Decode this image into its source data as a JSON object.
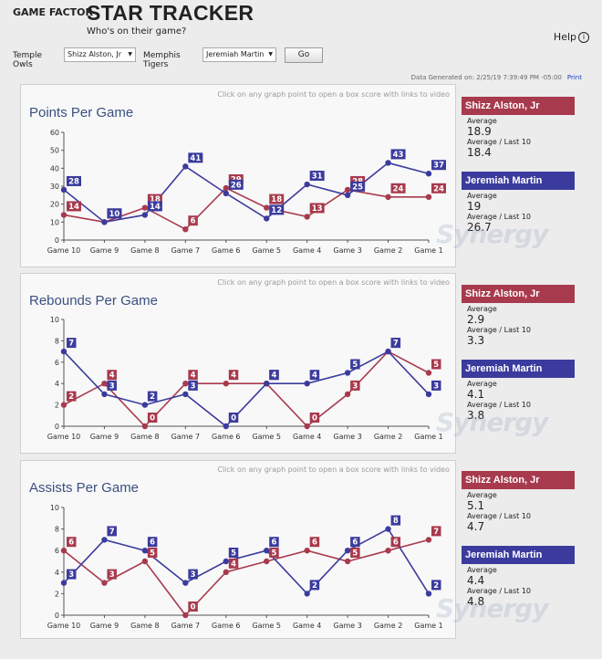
{
  "header": {
    "brand": "GAME FACTOR",
    "title": "STAR TRACKER",
    "subtitle": "Who's on their game?",
    "help": "Help"
  },
  "selectors": {
    "team1_label": "Temple Owls",
    "team1_player": "Shizz Alston, Jr",
    "team2_label": "Memphis Tigers",
    "team2_player": "Jeremiah Martin",
    "go": "Go"
  },
  "generated": {
    "text": "Data Generated on: 2/25/19 7:39:49 PM -05:00",
    "print": "Print"
  },
  "click_note": "Click on any graph point to open a box score with links to video",
  "stat_labels": {
    "average": "Average",
    "last10": "Average / Last 10"
  },
  "colors": {
    "red": "#a83a4d",
    "blue": "#3b3b9e"
  },
  "chart_data": [
    {
      "type": "line",
      "title": "Points Per Game",
      "categories": [
        "Game 10",
        "Game 9",
        "Game 8",
        "Game 7",
        "Game 6",
        "Game 5",
        "Game 4",
        "Game 3",
        "Game 2",
        "Game 1"
      ],
      "yticks": [
        0,
        10,
        20,
        30,
        40,
        50,
        60
      ],
      "ylim": [
        0,
        60
      ],
      "series": [
        {
          "name": "Shizz Alston, Jr",
          "color": "#a83a4d",
          "values": [
            14,
            10,
            18,
            6,
            29,
            18,
            13,
            28,
            24,
            24
          ]
        },
        {
          "name": "Jeremiah Martin",
          "color": "#3b3b9e",
          "values": [
            28,
            10,
            14,
            41,
            26,
            12,
            31,
            25,
            43,
            37
          ]
        }
      ],
      "players": [
        {
          "name": "Shizz Alston, Jr",
          "color": "red",
          "average": "18.9",
          "last10": "18.4"
        },
        {
          "name": "Jeremiah Martin",
          "color": "blue",
          "average": "19",
          "last10": "26.7"
        }
      ]
    },
    {
      "type": "line",
      "title": "Rebounds Per Game",
      "categories": [
        "Game 10",
        "Game 9",
        "Game 8",
        "Game 7",
        "Game 6",
        "Game 5",
        "Game 4",
        "Game 3",
        "Game 2",
        "Game 1"
      ],
      "yticks": [
        0,
        2,
        4,
        6,
        8,
        10
      ],
      "ylim": [
        0,
        10
      ],
      "series": [
        {
          "name": "Shizz Alston, Jr",
          "color": "#a83a4d",
          "values": [
            2,
            4,
            0,
            4,
            4,
            4,
            0,
            3,
            7,
            5
          ]
        },
        {
          "name": "Jeremiah Martin",
          "color": "#3b3b9e",
          "values": [
            7,
            3,
            2,
            3,
            0,
            4,
            4,
            5,
            7,
            3
          ]
        }
      ],
      "players": [
        {
          "name": "Shizz Alston, Jr",
          "color": "red",
          "average": "2.9",
          "last10": "3.3"
        },
        {
          "name": "Jeremiah Martin",
          "color": "blue",
          "average": "4.1",
          "last10": "3.8"
        }
      ]
    },
    {
      "type": "line",
      "title": "Assists Per Game",
      "categories": [
        "Game 10",
        "Game 9",
        "Game 8",
        "Game 7",
        "Game 6",
        "Game 5",
        "Game 4",
        "Game 3",
        "Game 2",
        "Game 1"
      ],
      "yticks": [
        0,
        2,
        4,
        6,
        8,
        10
      ],
      "ylim": [
        0,
        10
      ],
      "series": [
        {
          "name": "Shizz Alston, Jr",
          "color": "#a83a4d",
          "values": [
            6,
            3,
            5,
            0,
            4,
            5,
            6,
            5,
            6,
            7
          ]
        },
        {
          "name": "Jeremiah Martin",
          "color": "#3b3b9e",
          "values": [
            3,
            7,
            6,
            3,
            5,
            6,
            2,
            6,
            8,
            2
          ]
        }
      ],
      "players": [
        {
          "name": "Shizz Alston, Jr",
          "color": "red",
          "average": "5.1",
          "last10": "4.7"
        },
        {
          "name": "Jeremiah Martin",
          "color": "blue",
          "average": "4.4",
          "last10": "4.8"
        }
      ]
    }
  ],
  "watermark": "Synergy"
}
